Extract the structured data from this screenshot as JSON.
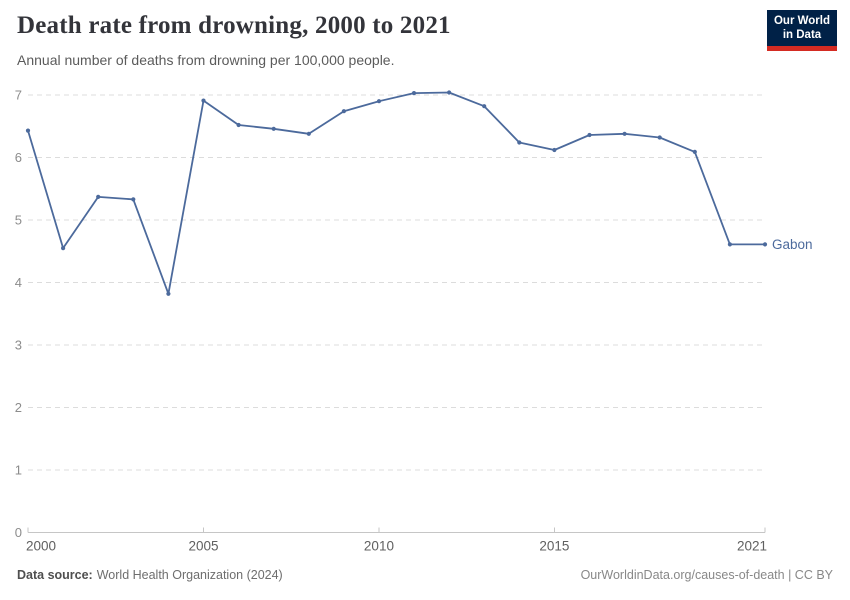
{
  "header": {
    "title": "Death rate from drowning, 2000 to 2021",
    "subtitle": "Annual number of deaths from drowning per 100,000 people.",
    "logo": {
      "line1": "Our World",
      "line2": "in Data",
      "bg_color": "#002147",
      "accent_color": "#D42B22"
    }
  },
  "chart_data": {
    "type": "line",
    "title": "Death rate from drowning, 2000 to 2021",
    "subtitle": "Annual number of deaths from drowning per 100,000 people.",
    "xlabel": "",
    "ylabel": "",
    "x": [
      2000,
      2001,
      2002,
      2003,
      2004,
      2005,
      2006,
      2007,
      2008,
      2009,
      2010,
      2011,
      2012,
      2013,
      2014,
      2015,
      2016,
      2017,
      2018,
      2019,
      2020,
      2021
    ],
    "series": [
      {
        "name": "Gabon",
        "color": "#4C6A9C",
        "values": [
          6.43,
          4.55,
          5.37,
          5.33,
          3.82,
          6.91,
          6.52,
          6.46,
          6.38,
          6.74,
          6.9,
          7.03,
          7.04,
          6.82,
          6.24,
          6.12,
          6.36,
          6.38,
          6.32,
          6.09,
          4.61,
          4.61
        ]
      }
    ],
    "ylim": [
      0,
      7
    ],
    "yticks": [
      0,
      1,
      2,
      3,
      4,
      5,
      6,
      7
    ],
    "xticks": [
      2000,
      2005,
      2010,
      2015,
      2021
    ],
    "grid": "horizontal-dashed",
    "legend_position": "end-of-line",
    "colors": {
      "gridline": "#dcdcdc",
      "axis": "#c6c6c6",
      "y_tick_label": "#8c8c8c",
      "x_tick_label": "#606060"
    }
  },
  "footer": {
    "source_label": "Data source:",
    "source_text": "World Health Organization (2024)",
    "credit": "OurWorldinData.org/causes-of-death | CC BY"
  }
}
